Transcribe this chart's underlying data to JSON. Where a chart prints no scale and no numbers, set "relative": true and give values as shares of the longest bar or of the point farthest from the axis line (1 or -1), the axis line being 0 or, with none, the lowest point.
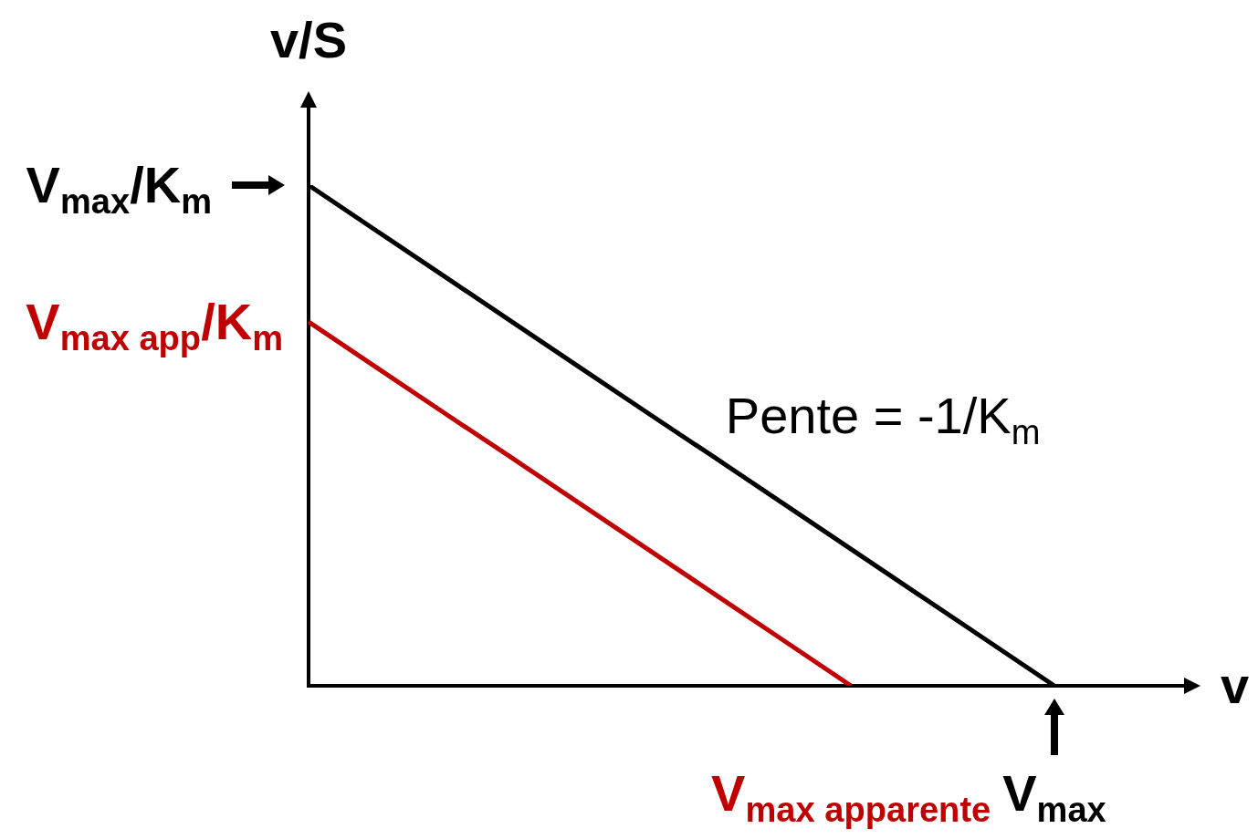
{
  "chart_data": {
    "type": "line",
    "relative": true,
    "xlabel": "v",
    "ylabel": "v/S",
    "line_style": "solid",
    "categories": [
      null,
      null,
      null,
      null,
      null,
      null,
      null,
      null,
      "V$_{max apparente}$",
      null,
      null,
      "V$_{max}$"
    ],
    "series": [
      {
        "name": "V$_{max}$/K$_{m}$",
        "color": "#000000",
        "values": [
          1,
          0.909,
          0.818,
          0.727,
          0.636,
          0.545,
          0.455,
          0.364,
          0.273,
          0.182,
          0.091,
          0
        ]
      },
      {
        "name": "V$_{max app}$/K$_{m}$",
        "color": "#c00000",
        "values": [
          0.727,
          0.636,
          0.545,
          0.455,
          0.364,
          0.273,
          0.182,
          0.091,
          0,
          null,
          null,
          null
        ]
      }
    ],
    "annotations": [
      "Pente = -1/K$_{m}$"
    ]
  }
}
